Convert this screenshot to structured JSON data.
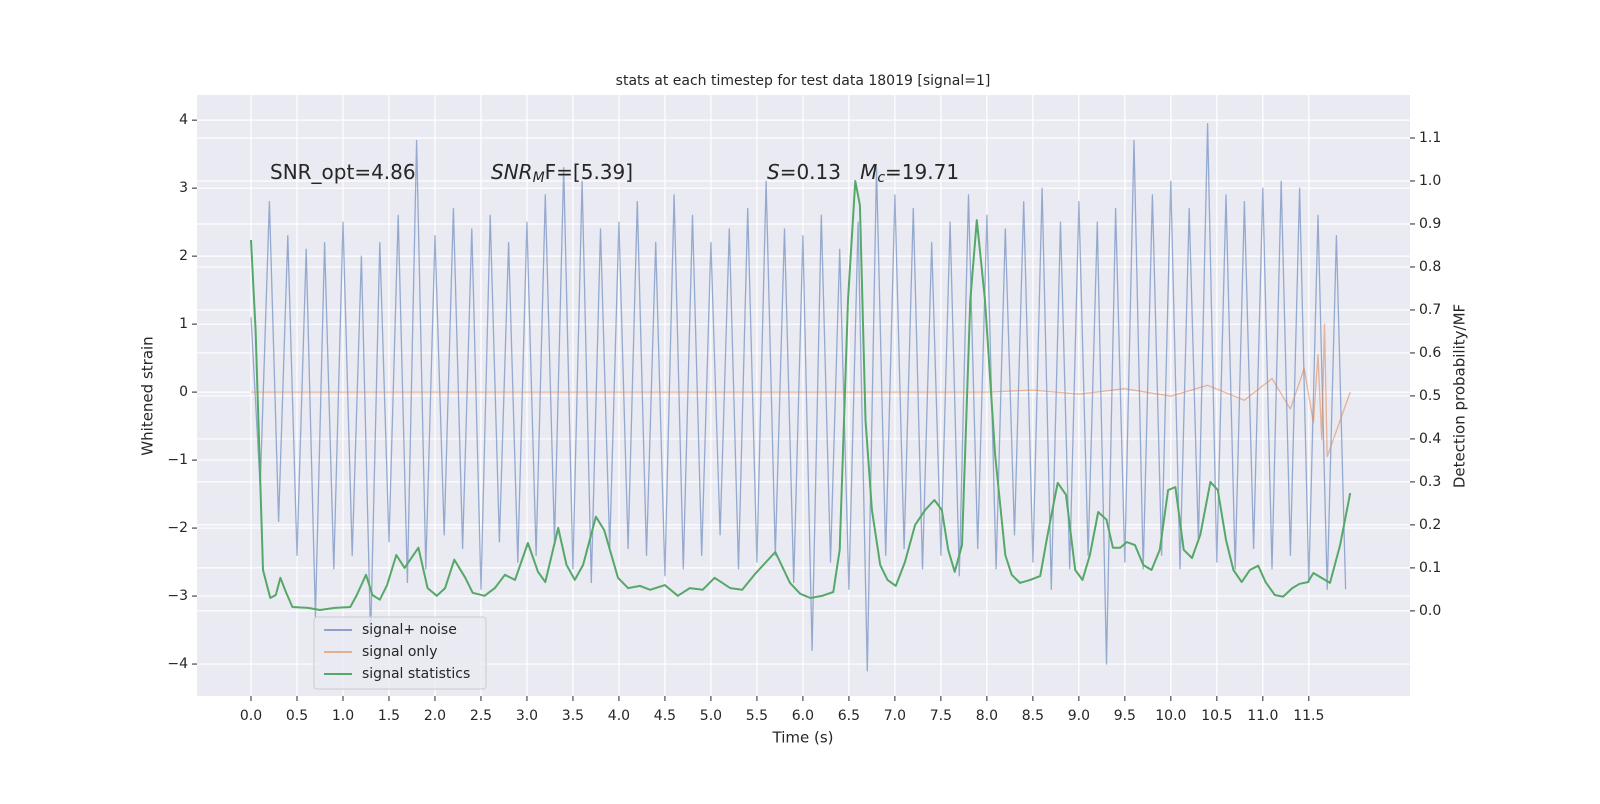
{
  "chart_data": {
    "type": "line",
    "title": "stats at each timestep for test data 18019 [signal=1]",
    "xlabel": "Time (s)",
    "ylabel": "Whitened strain",
    "y2label": "Detection probability/MF",
    "xlim": [
      -0.587,
      12.6
    ],
    "ylim": [
      -4.47,
      4.37
    ],
    "y2lim": [
      -0.198,
      1.2
    ],
    "xticks": [
      {
        "value": 0,
        "label": "0.0"
      },
      0.5,
      {
        "value": 1,
        "label": "1.0"
      },
      1.5,
      {
        "value": 2,
        "label": "2.0"
      },
      2.5,
      {
        "value": 3,
        "label": "3.0"
      },
      3.5,
      {
        "value": 4,
        "label": "4.0"
      },
      4.5,
      {
        "value": 5,
        "label": "5.0"
      },
      5.5,
      {
        "value": 6,
        "label": "6.0"
      },
      6.5,
      {
        "value": 7,
        "label": "7.0"
      },
      7.5,
      {
        "value": 8,
        "label": "8.0"
      },
      8.5,
      {
        "value": 9,
        "label": "9.0"
      },
      9.5,
      {
        "value": 10,
        "label": "10.0"
      },
      10.5,
      {
        "value": 11,
        "label": "11.0"
      },
      11.5
    ],
    "yticks": [
      {
        "value": -4,
        "label": "−4"
      },
      {
        "value": -3,
        "label": "−3"
      },
      {
        "value": -2,
        "label": "−2"
      },
      {
        "value": -1,
        "label": "−1"
      },
      0,
      1,
      2,
      3,
      4
    ],
    "y2ticks": [
      {
        "value": 0,
        "label": "0.0"
      },
      0.1,
      0.2,
      0.3,
      0.4,
      0.5,
      0.6,
      0.7,
      0.8,
      0.9,
      {
        "value": 1,
        "label": "1.0"
      },
      1.1
    ],
    "grid": true,
    "legend_loc": "lower left",
    "annotations": [
      [
        "SNR_opt=4.86"
      ],
      [
        "SNR",
        "M",
        "F=[5.39]"
      ],
      [
        "S",
        "=0.13   ",
        "M",
        "c",
        "=19.71"
      ]
    ],
    "series": [
      {
        "name": "signal+ noise",
        "color": "#4c72b0",
        "x": [
          0.0,
          0.1,
          0.2,
          0.3,
          0.4,
          0.5,
          0.6,
          0.7,
          0.8,
          0.9,
          1.0,
          1.1,
          1.2,
          1.3,
          1.4,
          1.5,
          1.6,
          1.7,
          1.8,
          1.9,
          2.0,
          2.1,
          2.2,
          2.3,
          2.4,
          2.5,
          2.6,
          2.7,
          2.8,
          2.9,
          3.0,
          3.1,
          3.2,
          3.3,
          3.4,
          3.5,
          3.6,
          3.7,
          3.8,
          3.9,
          4.0,
          4.1,
          4.2,
          4.3,
          4.4,
          4.5,
          4.6,
          4.7,
          4.8,
          4.9,
          5.0,
          5.1,
          5.2,
          5.3,
          5.4,
          5.5,
          5.6,
          5.7,
          5.8,
          5.9,
          6.0,
          6.1,
          6.2,
          6.3,
          6.4,
          6.5,
          6.6,
          6.7,
          6.8,
          6.9,
          7.0,
          7.1,
          7.2,
          7.3,
          7.4,
          7.5,
          7.6,
          7.7,
          7.8,
          7.9,
          8.0,
          8.1,
          8.2,
          8.3,
          8.4,
          8.5,
          8.6,
          8.7,
          8.8,
          8.9,
          9.0,
          9.1,
          9.2,
          9.3,
          9.4,
          9.5,
          9.6,
          9.7,
          9.8,
          9.9,
          10.0,
          10.1,
          10.2,
          10.3,
          10.4,
          10.5,
          10.6,
          10.7,
          10.8,
          10.9,
          11.0,
          11.1,
          11.2,
          11.3,
          11.4,
          11.5,
          11.6,
          11.7,
          11.8,
          11.9
        ],
        "values": [
          1.1,
          -1.4,
          2.8,
          -1.9,
          2.3,
          -2.4,
          2.1,
          -3.3,
          2.2,
          -2.6,
          2.5,
          -2.4,
          2.0,
          -3.6,
          2.2,
          -2.2,
          2.6,
          -2.8,
          3.7,
          -2.6,
          2.3,
          -2.1,
          2.7,
          -2.3,
          2.4,
          -2.9,
          2.6,
          -2.2,
          2.2,
          -2.5,
          2.5,
          -2.4,
          2.9,
          -2.2,
          3.3,
          -2.6,
          3.1,
          -2.8,
          2.4,
          -2.3,
          2.5,
          -2.3,
          2.8,
          -2.4,
          2.2,
          -2.7,
          2.9,
          -2.6,
          2.6,
          -2.4,
          2.2,
          -2.1,
          2.4,
          -2.6,
          2.7,
          -2.5,
          3.1,
          -2.4,
          2.4,
          -2.8,
          2.3,
          -3.8,
          2.6,
          -2.5,
          2.1,
          -2.9,
          2.5,
          -4.1,
          3.3,
          -2.4,
          2.9,
          -2.3,
          2.7,
          -2.6,
          2.2,
          -2.4,
          2.5,
          -2.7,
          2.9,
          -2.3,
          2.6,
          -2.6,
          2.4,
          -2.1,
          2.8,
          -2.5,
          3.0,
          -2.9,
          2.5,
          -2.6,
          2.8,
          -2.4,
          2.5,
          -4.0,
          2.7,
          -2.5,
          3.7,
          -2.6,
          2.9,
          -2.4,
          3.1,
          -2.6,
          2.7,
          -2.2,
          3.95,
          -2.5,
          2.9,
          -2.6,
          2.8,
          -2.3,
          3.0,
          -2.6,
          3.1,
          -2.4,
          3.0,
          -2.8,
          2.6,
          -2.9,
          2.3,
          -2.9
        ]
      },
      {
        "name": "signal only",
        "color": "#dd8452",
        "x": [
          0,
          8,
          8.5,
          9,
          9.5,
          10,
          10.4,
          10.8,
          11.1,
          11.3,
          11.45,
          11.55,
          11.6,
          11.64,
          11.67,
          11.7,
          11.95
        ],
        "values": [
          0,
          0,
          0.03,
          -0.03,
          0.05,
          -0.06,
          0.1,
          -0.12,
          0.2,
          -0.25,
          0.35,
          -0.45,
          0.55,
          -0.7,
          1.0,
          -0.95,
          0
        ]
      },
      {
        "name": "signal statistics",
        "color": "#55a868",
        "axis": "y2",
        "x": [
          0,
          0.05,
          0.13,
          0.21,
          0.27,
          0.32,
          0.38,
          0.45,
          0.62,
          0.75,
          0.91,
          1.08,
          1.15,
          1.25,
          1.32,
          1.4,
          1.48,
          1.58,
          1.67,
          1.82,
          1.92,
          2.02,
          2.11,
          2.21,
          2.33,
          2.41,
          2.54,
          2.65,
          2.76,
          2.87,
          3.01,
          3.12,
          3.2,
          3.34,
          3.43,
          3.52,
          3.61,
          3.75,
          3.84,
          3.99,
          4.1,
          4.23,
          4.34,
          4.5,
          4.64,
          4.77,
          4.91,
          5.04,
          5.21,
          5.34,
          5.48,
          5.7,
          5.86,
          5.97,
          6.08,
          6.21,
          6.33,
          6.4,
          6.49,
          6.57,
          6.62,
          6.68,
          6.75,
          6.84,
          6.92,
          7.01,
          7.11,
          7.22,
          7.33,
          7.43,
          7.51,
          7.58,
          7.65,
          7.73,
          7.82,
          7.89,
          7.98,
          8.09,
          8.2,
          8.27,
          8.36,
          8.47,
          8.58,
          8.66,
          8.77,
          8.86,
          8.96,
          9.04,
          9.12,
          9.21,
          9.3,
          9.37,
          9.45,
          9.52,
          9.61,
          9.7,
          9.79,
          9.88,
          9.97,
          10.05,
          10.14,
          10.23,
          10.32,
          10.43,
          10.51,
          10.6,
          10.68,
          10.77,
          10.86,
          10.95,
          11.03,
          11.13,
          11.22,
          11.32,
          11.4,
          11.49,
          11.55,
          11.62,
          11.73,
          11.84,
          11.95
        ],
        "values": [
          0.863,
          0.653,
          0.095,
          0.03,
          0.037,
          0.077,
          0.044,
          0.009,
          0.007,
          0.002,
          0.007,
          0.009,
          0.037,
          0.084,
          0.037,
          0.026,
          0.06,
          0.13,
          0.1,
          0.147,
          0.053,
          0.035,
          0.053,
          0.119,
          0.077,
          0.042,
          0.035,
          0.053,
          0.084,
          0.072,
          0.158,
          0.091,
          0.067,
          0.193,
          0.107,
          0.072,
          0.107,
          0.219,
          0.188,
          0.077,
          0.053,
          0.058,
          0.049,
          0.06,
          0.035,
          0.053,
          0.049,
          0.077,
          0.053,
          0.049,
          0.086,
          0.137,
          0.065,
          0.04,
          0.03,
          0.035,
          0.044,
          0.142,
          0.723,
          1.0,
          0.944,
          0.444,
          0.235,
          0.107,
          0.072,
          0.058,
          0.114,
          0.2,
          0.235,
          0.258,
          0.235,
          0.142,
          0.091,
          0.153,
          0.723,
          0.909,
          0.723,
          0.363,
          0.13,
          0.084,
          0.065,
          0.072,
          0.081,
          0.177,
          0.298,
          0.27,
          0.095,
          0.072,
          0.13,
          0.23,
          0.212,
          0.147,
          0.147,
          0.16,
          0.153,
          0.107,
          0.095,
          0.142,
          0.281,
          0.288,
          0.142,
          0.123,
          0.177,
          0.3,
          0.281,
          0.165,
          0.095,
          0.067,
          0.095,
          0.105,
          0.067,
          0.037,
          0.033,
          0.053,
          0.063,
          0.067,
          0.088,
          0.079,
          0.065,
          0.153,
          0.274
        ]
      }
    ]
  }
}
